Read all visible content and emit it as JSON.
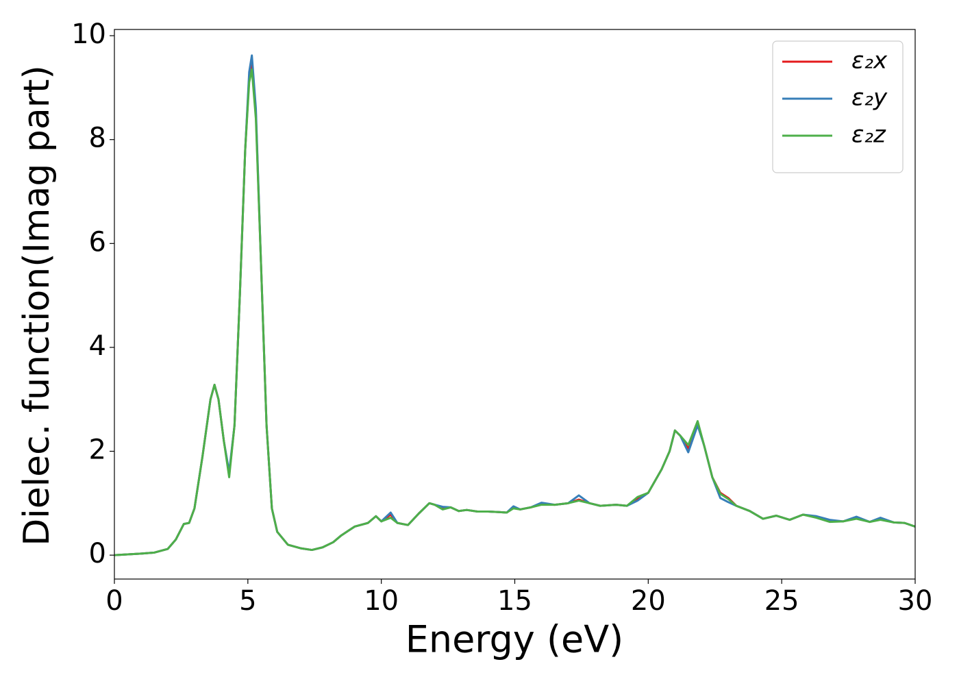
{
  "chart_data": {
    "type": "line",
    "xlabel": "Energy (eV)",
    "ylabel": "Dielec. function(Imag part)",
    "x": [
      0,
      1,
      1.5,
      2,
      2.3,
      2.6,
      2.8,
      3,
      3.3,
      3.6,
      3.75,
      3.9,
      4.1,
      4.3,
      4.5,
      4.7,
      4.9,
      5.05,
      5.15,
      5.3,
      5.5,
      5.7,
      5.9,
      6.1,
      6.5,
      7,
      7.4,
      7.8,
      8.2,
      8.5,
      9,
      9.5,
      9.8,
      10,
      10.35,
      10.6,
      11,
      11.4,
      11.8,
      12,
      12.3,
      12.6,
      12.9,
      13.2,
      13.6,
      14,
      14.4,
      14.7,
      14.95,
      15.2,
      15.6,
      16,
      16.5,
      17,
      17.4,
      17.8,
      18.2,
      18.8,
      19.2,
      19.6,
      20,
      20.5,
      20.8,
      21,
      21.2,
      21.5,
      21.85,
      22.1,
      22.4,
      22.7,
      23,
      23.3,
      23.8,
      24.3,
      24.8,
      25.3,
      25.8,
      26.3,
      26.8,
      27.3,
      27.8,
      28.3,
      28.7,
      29.2,
      29.6,
      30
    ],
    "series": [
      {
        "name": "ε₂x",
        "color": "#e41a1c",
        "values": [
          0,
          0.03,
          0.05,
          0.12,
          0.3,
          0.6,
          0.62,
          0.9,
          1.9,
          3.0,
          3.28,
          3.0,
          2.2,
          1.55,
          2.5,
          5.0,
          7.8,
          9.2,
          9.45,
          8.5,
          5.5,
          2.5,
          0.9,
          0.45,
          0.2,
          0.13,
          0.1,
          0.15,
          0.25,
          0.38,
          0.55,
          0.62,
          0.75,
          0.65,
          0.78,
          0.62,
          0.58,
          0.8,
          1.0,
          0.97,
          0.9,
          0.92,
          0.85,
          0.87,
          0.84,
          0.84,
          0.83,
          0.82,
          0.92,
          0.88,
          0.92,
          0.98,
          0.97,
          1.0,
          1.07,
          1.0,
          0.95,
          0.97,
          0.95,
          1.08,
          1.2,
          1.65,
          2.0,
          2.4,
          2.3,
          2.05,
          2.55,
          2.1,
          1.5,
          1.2,
          1.1,
          0.95,
          0.85,
          0.7,
          0.76,
          0.68,
          0.78,
          0.73,
          0.66,
          0.65,
          0.72,
          0.64,
          0.7,
          0.63,
          0.62,
          0.55
        ]
      },
      {
        "name": "ε₂y",
        "color": "#377eb8",
        "values": [
          0,
          0.03,
          0.05,
          0.12,
          0.3,
          0.6,
          0.62,
          0.9,
          1.9,
          3.0,
          3.28,
          3.0,
          2.2,
          1.6,
          2.5,
          5.0,
          7.8,
          9.3,
          9.62,
          8.6,
          5.5,
          2.5,
          0.9,
          0.45,
          0.2,
          0.13,
          0.1,
          0.15,
          0.25,
          0.38,
          0.55,
          0.62,
          0.75,
          0.65,
          0.82,
          0.62,
          0.58,
          0.8,
          1.0,
          0.97,
          0.93,
          0.92,
          0.85,
          0.87,
          0.84,
          0.84,
          0.83,
          0.82,
          0.94,
          0.88,
          0.92,
          1.01,
          0.97,
          1.0,
          1.15,
          1.0,
          0.95,
          0.97,
          0.95,
          1.05,
          1.2,
          1.65,
          2.0,
          2.4,
          2.3,
          1.98,
          2.5,
          2.1,
          1.5,
          1.1,
          1.02,
          0.95,
          0.85,
          0.7,
          0.76,
          0.68,
          0.78,
          0.75,
          0.68,
          0.65,
          0.74,
          0.64,
          0.72,
          0.63,
          0.62,
          0.55
        ]
      },
      {
        "name": "ε₂z",
        "color": "#4daf4a",
        "values": [
          0,
          0.03,
          0.05,
          0.12,
          0.3,
          0.6,
          0.62,
          0.9,
          1.9,
          3.0,
          3.28,
          3.0,
          2.2,
          1.5,
          2.5,
          5.0,
          7.8,
          9.1,
          9.35,
          8.4,
          5.5,
          2.5,
          0.9,
          0.45,
          0.2,
          0.13,
          0.1,
          0.15,
          0.25,
          0.38,
          0.55,
          0.62,
          0.75,
          0.65,
          0.72,
          0.62,
          0.58,
          0.8,
          1.0,
          0.97,
          0.88,
          0.92,
          0.85,
          0.87,
          0.84,
          0.84,
          0.83,
          0.82,
          0.9,
          0.88,
          0.92,
          0.97,
          0.97,
          1.0,
          1.05,
          1.0,
          0.95,
          0.97,
          0.95,
          1.12,
          1.2,
          1.65,
          2.0,
          2.4,
          2.3,
          2.12,
          2.58,
          2.1,
          1.5,
          1.18,
          1.08,
          0.95,
          0.85,
          0.7,
          0.76,
          0.68,
          0.78,
          0.72,
          0.64,
          0.65,
          0.7,
          0.64,
          0.68,
          0.63,
          0.62,
          0.55
        ]
      }
    ],
    "xlim": [
      0,
      30
    ],
    "xticks": [
      0,
      5,
      10,
      15,
      20,
      25,
      30
    ],
    "ylim": [
      -0.46,
      10.12
    ],
    "yticks": [
      0,
      2,
      4,
      6,
      8,
      10
    ],
    "grid": false,
    "legend": "upper right"
  }
}
